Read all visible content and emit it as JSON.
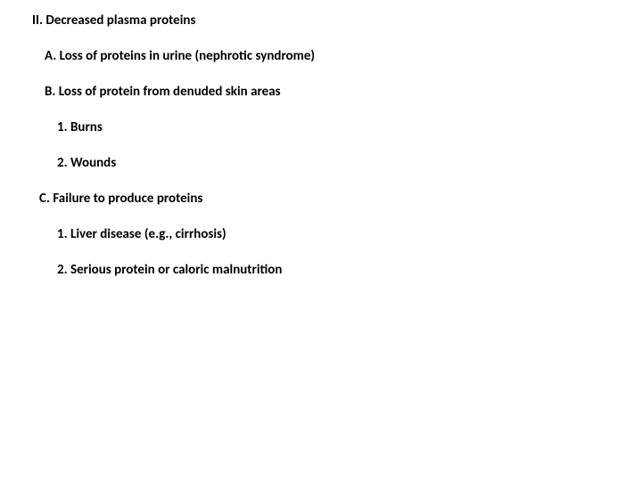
{
  "doc": {
    "background_color": "#ffffff",
    "text_color": "#000000",
    "font_family": "Calibri, Arial, sans-serif",
    "font_weight": 700,
    "base_fontsize": 15,
    "outline": {
      "heading": "II. Decreased plasma proteins",
      "items": [
        {
          "label": "A. Loss of proteins in urine (nephrotic syndrome)",
          "indent": 1,
          "children": []
        },
        {
          "label": "B. Loss of protein from denuded skin areas",
          "indent": 1,
          "children": [
            {
              "label": "1. Burns",
              "indent": 2
            },
            {
              "label": "2. Wounds",
              "indent": 2
            }
          ]
        },
        {
          "label": "C. Failure to produce proteins",
          "indent": 1,
          "children": [
            {
              "label": "1. Liver disease (e.g., cirrhosis)",
              "indent": 2
            },
            {
              "label": "2. Serious protein or caloric malnutrition",
              "indent": 2
            }
          ]
        }
      ]
    }
  }
}
